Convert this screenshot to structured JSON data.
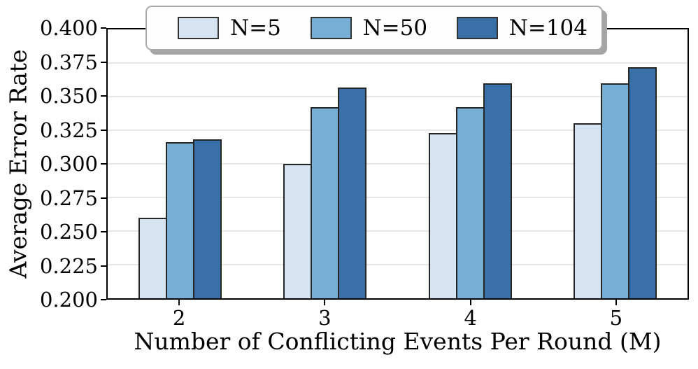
{
  "chart_data": {
    "type": "bar",
    "title": "",
    "xlabel": "Number of Conflicting Events Per Round (M)",
    "ylabel": "Average Error Rate",
    "categories": [
      "2",
      "3",
      "4",
      "5"
    ],
    "series": [
      {
        "name": "N=5",
        "color": "#d6e4f2",
        "values": [
          0.26,
          0.3,
          0.323,
          0.33
        ]
      },
      {
        "name": "N=50",
        "color": "#76afd6",
        "values": [
          0.316,
          0.342,
          0.342,
          0.36
        ]
      },
      {
        "name": "N=104",
        "color": "#3a70a8",
        "values": [
          0.318,
          0.357,
          0.36,
          0.372
        ]
      }
    ],
    "ylim": [
      0.2,
      0.4
    ],
    "yticks": [
      "0.200",
      "0.225",
      "0.250",
      "0.275",
      "0.300",
      "0.325",
      "0.350",
      "0.375",
      "0.400"
    ],
    "grid": true,
    "legend_position": "top-center",
    "bar_edge_color": "#262626",
    "grid_color": "#e7e7e7"
  }
}
